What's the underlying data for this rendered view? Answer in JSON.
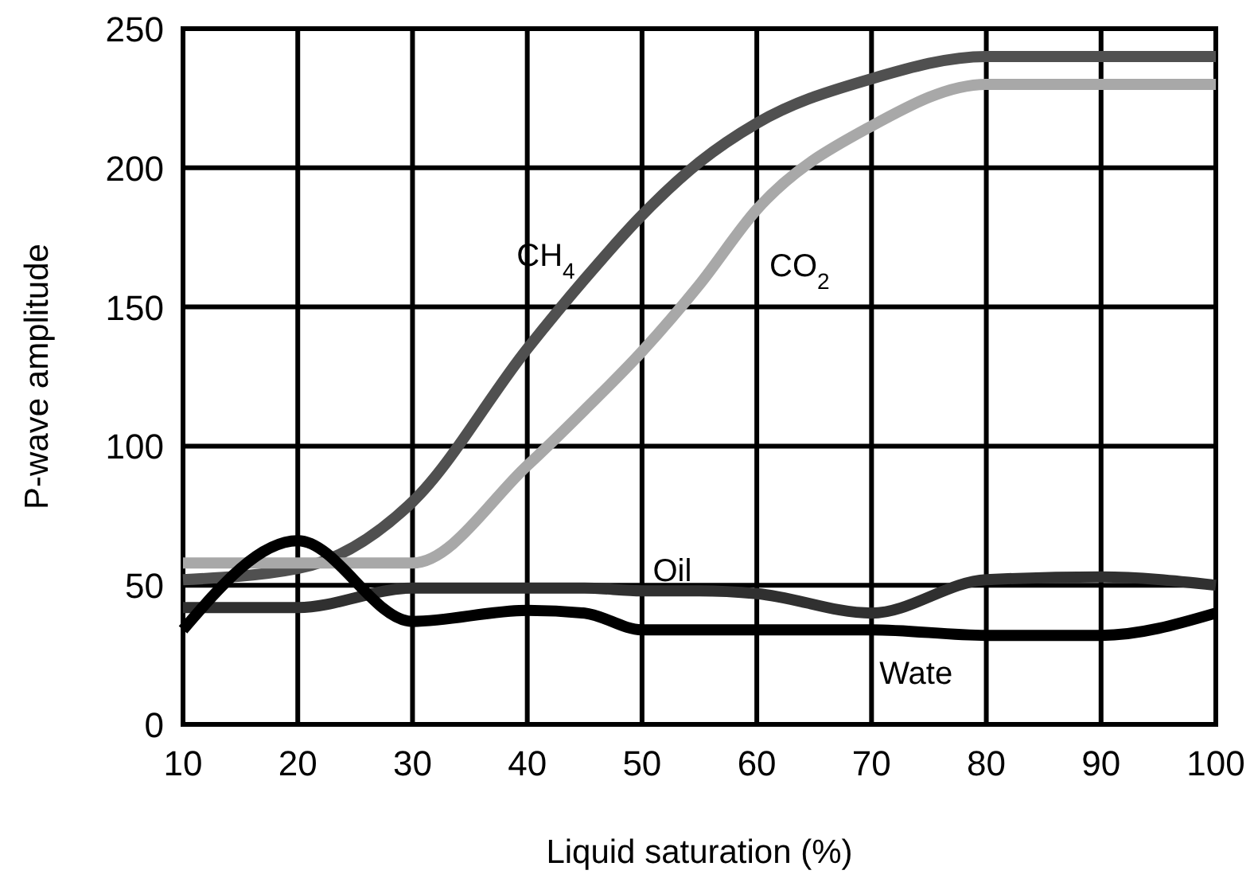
{
  "chart_data": {
    "type": "line",
    "xlabel": "Liquid saturation (%)",
    "ylabel": "P-wave amplitude",
    "x": [
      10,
      20,
      30,
      40,
      45,
      50,
      55,
      60,
      70,
      80,
      90,
      100
    ],
    "series": [
      {
        "name": "CH$_{4}$",
        "color": "#505050",
        "values": [
          52,
          56,
          80,
          135,
          160,
          183,
          202,
          216,
          232,
          240,
          240,
          240
        ]
      },
      {
        "name": "CO$_{2}$",
        "color": "#a8a8a8",
        "values": [
          58,
          58,
          58,
          93,
          113,
          134,
          158,
          185,
          215,
          230,
          230,
          230
        ]
      },
      {
        "name": "Oil",
        "color": "#303030",
        "values": [
          42,
          42,
          49,
          49,
          49,
          48,
          48,
          47,
          40,
          52,
          53,
          50
        ]
      },
      {
        "name": "Wate",
        "color": "#000000",
        "values": [
          34,
          66,
          37,
          41,
          40,
          34,
          34,
          34,
          34,
          32,
          32,
          40
        ]
      }
    ],
    "xlim": [
      10,
      100
    ],
    "ylim": [
      0,
      250
    ],
    "xticks": [
      10,
      20,
      30,
      40,
      50,
      60,
      70,
      80,
      90,
      100
    ],
    "yticks": [
      0,
      50,
      100,
      150,
      200,
      250
    ],
    "grid": true,
    "marker": "none",
    "line_style": "solid"
  }
}
